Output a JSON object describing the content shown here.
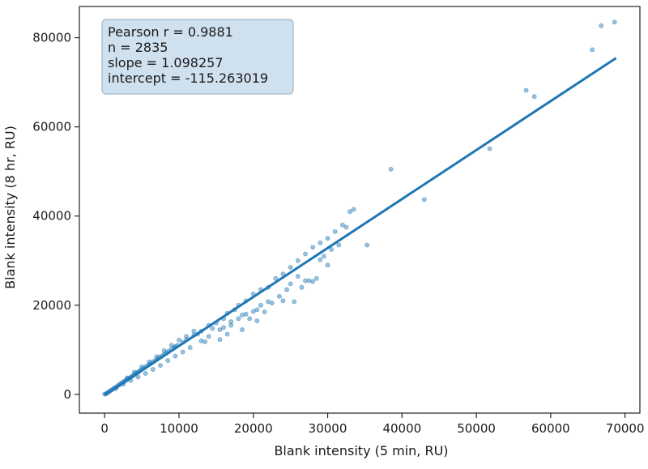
{
  "chart_data": {
    "type": "scatter",
    "title": "",
    "xlabel": "Blank intensity (5 min, RU)",
    "ylabel": "Blank intensity (8 hr, RU)",
    "xlim": [
      -3400,
      72000
    ],
    "ylim": [
      -4200,
      87000
    ],
    "xticks": [
      0,
      10000,
      20000,
      30000,
      40000,
      50000,
      60000,
      70000
    ],
    "yticks": [
      0,
      20000,
      40000,
      60000,
      80000
    ],
    "grid": false,
    "point_color": "#1f77b4",
    "line_color": "#1f77b4",
    "stats_box_color": "#cfe0ee",
    "stats": [
      "Pearson r = 0.9881",
      "n = 2835",
      "slope = 1.098257",
      "intercept = -115.263019"
    ],
    "fit_line": {
      "slope": 1.098257,
      "intercept": -115.263019,
      "x_range": [
        0,
        68800
      ]
    },
    "points": [
      [
        0,
        50
      ],
      [
        150,
        120
      ],
      [
        300,
        280
      ],
      [
        450,
        420
      ],
      [
        600,
        620
      ],
      [
        800,
        850
      ],
      [
        1000,
        1050
      ],
      [
        1200,
        1300
      ],
      [
        1400,
        1550
      ],
      [
        1600,
        1700
      ],
      [
        1800,
        2000
      ],
      [
        2000,
        2150
      ],
      [
        2200,
        2500
      ],
      [
        2400,
        2650
      ],
      [
        2600,
        2900
      ],
      [
        2800,
        3100
      ],
      [
        3000,
        3300
      ],
      [
        3200,
        3600
      ],
      [
        3400,
        3750
      ],
      [
        3600,
        4000
      ],
      [
        3800,
        4200
      ],
      [
        4000,
        4450
      ],
      [
        4200,
        4700
      ],
      [
        4400,
        4900
      ],
      [
        4600,
        5100
      ],
      [
        4800,
        5400
      ],
      [
        5000,
        5600
      ],
      [
        5300,
        5900
      ],
      [
        5600,
        6300
      ],
      [
        5900,
        6600
      ],
      [
        6200,
        6900
      ],
      [
        6500,
        7300
      ],
      [
        6800,
        7600
      ],
      [
        7100,
        8000
      ],
      [
        7400,
        8300
      ],
      [
        7700,
        8600
      ],
      [
        8000,
        9000
      ],
      [
        8300,
        9300
      ],
      [
        8600,
        9700
      ],
      [
        9000,
        10100
      ],
      [
        9400,
        10500
      ],
      [
        9800,
        11000
      ],
      [
        1500,
        1300
      ],
      [
        2500,
        2300
      ],
      [
        3500,
        3100
      ],
      [
        4500,
        3900
      ],
      [
        5500,
        4700
      ],
      [
        6500,
        5600
      ],
      [
        7500,
        6500
      ],
      [
        8500,
        7600
      ],
      [
        9500,
        8600
      ],
      [
        3000,
        3700
      ],
      [
        4000,
        5000
      ],
      [
        5000,
        6200
      ],
      [
        6000,
        7300
      ],
      [
        7000,
        8500
      ],
      [
        8000,
        9800
      ],
      [
        9000,
        11000
      ],
      [
        10000,
        12200
      ],
      [
        11000,
        13000
      ],
      [
        12000,
        14200
      ],
      [
        12500,
        13500
      ],
      [
        11500,
        10500
      ],
      [
        10500,
        9500
      ],
      [
        13000,
        12000
      ],
      [
        13500,
        11800
      ],
      [
        14000,
        13000
      ],
      [
        14500,
        14800
      ],
      [
        15000,
        16000
      ],
      [
        15500,
        14500
      ],
      [
        16000,
        17000
      ],
      [
        16500,
        18200
      ],
      [
        17000,
        15500
      ],
      [
        17500,
        19000
      ],
      [
        18000,
        20000
      ],
      [
        18500,
        17800
      ],
      [
        19000,
        21000
      ],
      [
        19500,
        17000
      ],
      [
        20000,
        22500
      ],
      [
        20500,
        19000
      ],
      [
        21000,
        23500
      ],
      [
        21500,
        18500
      ],
      [
        22000,
        24000
      ],
      [
        22500,
        20500
      ],
      [
        23000,
        26000
      ],
      [
        23500,
        22000
      ],
      [
        24000,
        27000
      ],
      [
        24500,
        23500
      ],
      [
        25000,
        28500
      ],
      [
        25500,
        20800
      ],
      [
        26000,
        30000
      ],
      [
        26500,
        24000
      ],
      [
        27000,
        31500
      ],
      [
        27500,
        25500
      ],
      [
        28000,
        33000
      ],
      [
        28500,
        26000
      ],
      [
        29000,
        34000
      ],
      [
        29500,
        31000
      ],
      [
        30000,
        35000
      ],
      [
        30500,
        32500
      ],
      [
        31000,
        36500
      ],
      [
        31500,
        33500
      ],
      [
        32000,
        38000
      ],
      [
        32500,
        37500
      ],
      [
        33000,
        41000
      ],
      [
        33500,
        41500
      ],
      [
        35300,
        33500
      ],
      [
        38500,
        50500
      ],
      [
        43000,
        43700
      ],
      [
        51800,
        55100
      ],
      [
        56700,
        68200
      ],
      [
        57800,
        66800
      ],
      [
        65600,
        77300
      ],
      [
        66800,
        82700
      ],
      [
        68600,
        83500
      ],
      [
        14000,
        15500
      ],
      [
        13000,
        14200
      ],
      [
        12000,
        13300
      ],
      [
        11000,
        12300
      ],
      [
        10500,
        11700
      ],
      [
        9500,
        10700
      ],
      [
        16000,
        15000
      ],
      [
        17000,
        16300
      ],
      [
        18000,
        17000
      ],
      [
        19000,
        18000
      ],
      [
        20000,
        18600
      ],
      [
        21000,
        20000
      ],
      [
        22000,
        20800
      ],
      [
        15500,
        12300
      ],
      [
        16500,
        13500
      ],
      [
        18500,
        14500
      ],
      [
        20500,
        16500
      ],
      [
        24000,
        21000
      ],
      [
        27000,
        25500
      ],
      [
        28000,
        25300
      ],
      [
        30000,
        29000
      ],
      [
        25000,
        24800
      ],
      [
        26000,
        26500
      ],
      [
        29000,
        30200
      ]
    ]
  }
}
